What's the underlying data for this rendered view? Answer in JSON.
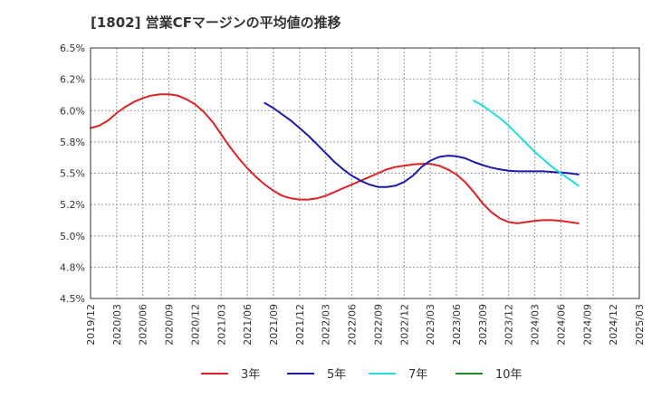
{
  "chart_data": {
    "type": "line",
    "title": "[1802]  営業CFマージンの平均値の推移",
    "xlabel": "",
    "ylabel": "",
    "x_ticks": [
      "2019/12",
      "2020/03",
      "2020/06",
      "2020/09",
      "2020/12",
      "2021/03",
      "2021/06",
      "2021/09",
      "2021/12",
      "2022/03",
      "2022/06",
      "2022/09",
      "2022/12",
      "2023/03",
      "2023/06",
      "2023/09",
      "2023/12",
      "2024/03",
      "2024/06",
      "2024/09",
      "2024/12",
      "2025/03"
    ],
    "y_ticks": [
      "4.5%",
      "4.8%",
      "5.0%",
      "5.2%",
      "5.5%",
      "5.8%",
      "6.0%",
      "6.2%",
      "6.5%"
    ],
    "ylim": [
      4.5,
      6.5
    ],
    "xlim": [
      "2019-12",
      "2025-03"
    ],
    "grid": true,
    "legend_position": "bottom",
    "series": [
      {
        "name": "3年",
        "color": "#dd2222",
        "points": [
          [
            "2019-12",
            5.86
          ],
          [
            "2020-01",
            5.88
          ],
          [
            "2020-02",
            5.92
          ],
          [
            "2020-03",
            5.98
          ],
          [
            "2020-04",
            6.03
          ],
          [
            "2020-05",
            6.07
          ],
          [
            "2020-06",
            6.1
          ],
          [
            "2020-07",
            6.12
          ],
          [
            "2020-08",
            6.13
          ],
          [
            "2020-09",
            6.13
          ],
          [
            "2020-10",
            6.12
          ],
          [
            "2020-11",
            6.09
          ],
          [
            "2020-12",
            6.05
          ],
          [
            "2021-01",
            5.99
          ],
          [
            "2021-02",
            5.91
          ],
          [
            "2021-03",
            5.81
          ],
          [
            "2021-04",
            5.71
          ],
          [
            "2021-05",
            5.62
          ],
          [
            "2021-06",
            5.54
          ],
          [
            "2021-07",
            5.47
          ],
          [
            "2021-08",
            5.41
          ],
          [
            "2021-09",
            5.36
          ],
          [
            "2021-10",
            5.32
          ],
          [
            "2021-11",
            5.3
          ],
          [
            "2021-12",
            5.29
          ],
          [
            "2022-01",
            5.29
          ],
          [
            "2022-02",
            5.3
          ],
          [
            "2022-03",
            5.32
          ],
          [
            "2022-04",
            5.35
          ],
          [
            "2022-05",
            5.38
          ],
          [
            "2022-06",
            5.41
          ],
          [
            "2022-07",
            5.44
          ],
          [
            "2022-08",
            5.47
          ],
          [
            "2022-09",
            5.5
          ],
          [
            "2022-10",
            5.53
          ],
          [
            "2022-11",
            5.55
          ],
          [
            "2022-12",
            5.56
          ],
          [
            "2023-01",
            5.57
          ],
          [
            "2023-02",
            5.575
          ],
          [
            "2023-03",
            5.575
          ],
          [
            "2023-04",
            5.56
          ],
          [
            "2023-05",
            5.53
          ],
          [
            "2023-06",
            5.49
          ],
          [
            "2023-07",
            5.43
          ],
          [
            "2023-08",
            5.35
          ],
          [
            "2023-09",
            5.26
          ],
          [
            "2023-10",
            5.19
          ],
          [
            "2023-11",
            5.14
          ],
          [
            "2023-12",
            5.11
          ],
          [
            "2024-01",
            5.1
          ],
          [
            "2024-02",
            5.11
          ],
          [
            "2024-03",
            5.12
          ],
          [
            "2024-04",
            5.125
          ],
          [
            "2024-05",
            5.125
          ],
          [
            "2024-06",
            5.12
          ],
          [
            "2024-07",
            5.11
          ],
          [
            "2024-08",
            5.1
          ]
        ]
      },
      {
        "name": "5年",
        "color": "#1a1aaa",
        "points": [
          [
            "2021-08",
            6.06
          ],
          [
            "2021-09",
            6.02
          ],
          [
            "2021-10",
            5.97
          ],
          [
            "2021-11",
            5.92
          ],
          [
            "2021-12",
            5.86
          ],
          [
            "2022-01",
            5.8
          ],
          [
            "2022-02",
            5.73
          ],
          [
            "2022-03",
            5.66
          ],
          [
            "2022-04",
            5.59
          ],
          [
            "2022-05",
            5.53
          ],
          [
            "2022-06",
            5.48
          ],
          [
            "2022-07",
            5.44
          ],
          [
            "2022-08",
            5.41
          ],
          [
            "2022-09",
            5.39
          ],
          [
            "2022-10",
            5.39
          ],
          [
            "2022-11",
            5.4
          ],
          [
            "2022-12",
            5.43
          ],
          [
            "2023-01",
            5.48
          ],
          [
            "2023-02",
            5.55
          ],
          [
            "2023-03",
            5.6
          ],
          [
            "2023-04",
            5.63
          ],
          [
            "2023-05",
            5.64
          ],
          [
            "2023-06",
            5.635
          ],
          [
            "2023-07",
            5.62
          ],
          [
            "2023-08",
            5.59
          ],
          [
            "2023-09",
            5.565
          ],
          [
            "2023-10",
            5.545
          ],
          [
            "2023-11",
            5.53
          ],
          [
            "2023-12",
            5.52
          ],
          [
            "2024-01",
            5.515
          ],
          [
            "2024-02",
            5.515
          ],
          [
            "2024-03",
            5.515
          ],
          [
            "2024-04",
            5.515
          ],
          [
            "2024-05",
            5.51
          ],
          [
            "2024-06",
            5.505
          ],
          [
            "2024-07",
            5.5
          ],
          [
            "2024-08",
            5.49
          ]
        ]
      },
      {
        "name": "7年",
        "color": "#22dddd",
        "points": [
          [
            "2023-08",
            6.08
          ],
          [
            "2023-09",
            6.04
          ],
          [
            "2023-10",
            5.99
          ],
          [
            "2023-11",
            5.94
          ],
          [
            "2023-12",
            5.88
          ],
          [
            "2024-01",
            5.81
          ],
          [
            "2024-02",
            5.74
          ],
          [
            "2024-03",
            5.67
          ],
          [
            "2024-04",
            5.61
          ],
          [
            "2024-05",
            5.55
          ],
          [
            "2024-06",
            5.5
          ],
          [
            "2024-07",
            5.45
          ],
          [
            "2024-08",
            5.4
          ]
        ]
      },
      {
        "name": "10年",
        "color": "#228822",
        "points": []
      }
    ]
  }
}
